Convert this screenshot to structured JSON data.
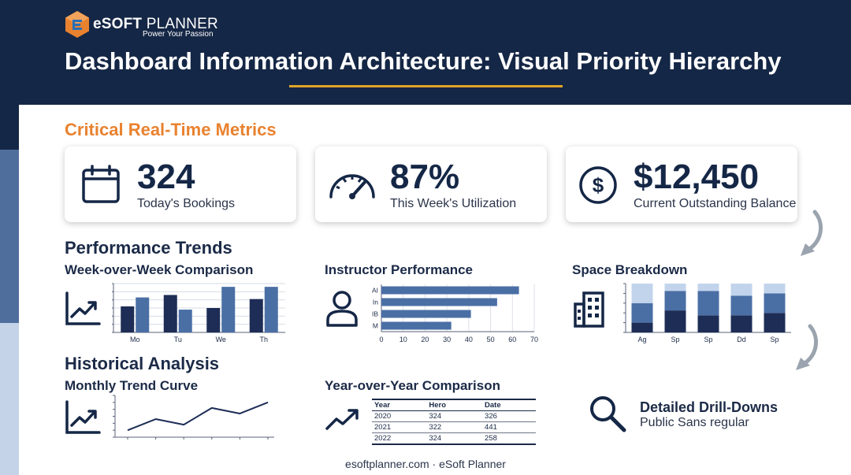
{
  "colors": {
    "navy": "#152746",
    "accent_orange": "#e9822f",
    "gold": "#e0a32a",
    "bar_dark": "#1d2d56",
    "bar_mid": "#4a6fa5",
    "bar_light": "#c2d4ec"
  },
  "header": {
    "logo_brand_bold": "eSOFT",
    "logo_brand_light": " PLANNER",
    "logo_tagline": "Power Your Passion",
    "title": "Dashboard Information Architecture: Visual Priority Hierarchy"
  },
  "critical": {
    "heading": "Critical Real-Time Metrics",
    "cards": [
      {
        "value": "324",
        "label": "Today's Bookings",
        "icon": "calendar-icon"
      },
      {
        "value": "87%",
        "label": "This Week's Utilization",
        "icon": "speedometer-icon"
      },
      {
        "value": "$12,450",
        "label": "Current Outstanding Balance",
        "icon": "dollar-coin-icon"
      }
    ]
  },
  "performance": {
    "heading": "Performance Trends",
    "week": {
      "title": "Week-over-Week Comparison"
    },
    "instructor": {
      "title": "Instructor Performance"
    },
    "space": {
      "title": "Space Breakdown"
    }
  },
  "historical": {
    "heading": "Historical Analysis",
    "monthly": {
      "title": "Monthly Trend Curve"
    },
    "yoy": {
      "title": "Year-over-Year Comparison",
      "columns": [
        "Year",
        "Hero",
        "Date"
      ],
      "rows": [
        [
          "2020",
          "324",
          "326"
        ],
        [
          "2021",
          "322",
          "441"
        ],
        [
          "2022",
          "324",
          "258"
        ]
      ]
    }
  },
  "drill": {
    "title": "Detailed Drill-Downs",
    "subtitle": "Public Sans regular"
  },
  "footer": "esoftplanner.com · eSoft Planner",
  "chart_data": [
    {
      "type": "bar",
      "categories": [
        "Mo",
        "Tu",
        "We",
        "Th"
      ],
      "series": [
        {
          "values": [
            3.2,
            4.6,
            3.0,
            4.1
          ]
        },
        {
          "values": [
            4.3,
            2.8,
            5.6,
            5.6
          ]
        }
      ],
      "ylim": [
        0,
        6
      ],
      "grid": true
    },
    {
      "type": "bar",
      "orientation": "horizontal",
      "categories": [
        "AI",
        "In",
        "IB",
        "M"
      ],
      "values": [
        63,
        53,
        41,
        32
      ],
      "xlim": [
        0,
        70
      ],
      "xticks": [
        0,
        10,
        20,
        30,
        40,
        50,
        60,
        70
      ],
      "grid": true
    },
    {
      "type": "bar",
      "stacked": true,
      "categories": [
        "Ag",
        "Sp",
        "Sp",
        "Dd",
        "Sp"
      ],
      "series": [
        {
          "values": [
            20,
            45,
            35,
            35,
            40
          ]
        },
        {
          "values": [
            40,
            40,
            50,
            40,
            40
          ]
        },
        {
          "values": [
            40,
            15,
            15,
            25,
            20
          ]
        }
      ],
      "ylim": [
        0,
        100
      ]
    },
    {
      "type": "line",
      "x": [
        1,
        2,
        3,
        4,
        5,
        6
      ],
      "values": [
        1.0,
        2.6,
        1.8,
        4.2,
        3.4,
        5.0
      ],
      "ylim": [
        0,
        6
      ]
    }
  ]
}
